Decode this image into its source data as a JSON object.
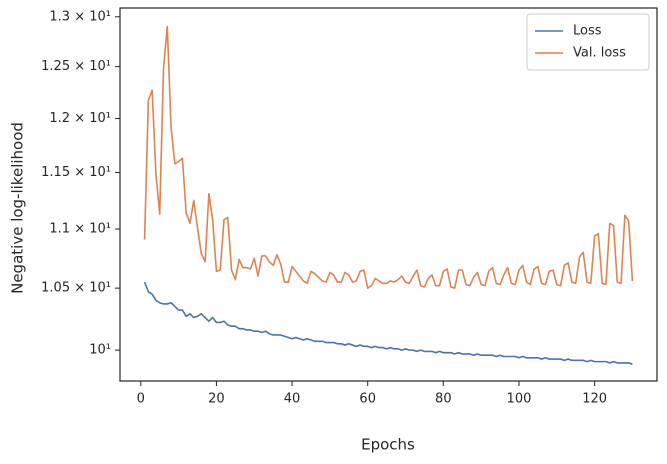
{
  "chart_data": {
    "type": "line",
    "x_label": "Epochs",
    "y_label": "Negative log-likelihood",
    "x": [
      1,
      2,
      3,
      4,
      5,
      6,
      7,
      8,
      9,
      10,
      11,
      12,
      13,
      14,
      15,
      16,
      17,
      18,
      19,
      20,
      21,
      22,
      23,
      24,
      25,
      26,
      27,
      28,
      29,
      30,
      31,
      32,
      33,
      34,
      35,
      36,
      37,
      38,
      39,
      40,
      41,
      42,
      43,
      44,
      45,
      46,
      47,
      48,
      49,
      50,
      51,
      52,
      53,
      54,
      55,
      56,
      57,
      58,
      59,
      60,
      61,
      62,
      63,
      64,
      65,
      66,
      67,
      68,
      69,
      70,
      71,
      72,
      73,
      74,
      75,
      76,
      77,
      78,
      79,
      80,
      81,
      82,
      83,
      84,
      85,
      86,
      87,
      88,
      89,
      90,
      91,
      92,
      93,
      94,
      95,
      96,
      97,
      98,
      99,
      100,
      101,
      102,
      103,
      104,
      105,
      106,
      107,
      108,
      109,
      110,
      111,
      112,
      113,
      114,
      115,
      116,
      117,
      118,
      119,
      120,
      121,
      122,
      123,
      124,
      125,
      126,
      127,
      128,
      129,
      130
    ],
    "series": [
      {
        "name": "Loss",
        "color": "#4c72b0",
        "values": [
          10.55,
          10.47,
          10.45,
          10.4,
          10.38,
          10.37,
          10.37,
          10.38,
          10.35,
          10.32,
          10.32,
          10.27,
          10.29,
          10.26,
          10.27,
          10.29,
          10.26,
          10.23,
          10.26,
          10.22,
          10.22,
          10.23,
          10.2,
          10.19,
          10.19,
          10.17,
          10.17,
          10.16,
          10.16,
          10.15,
          10.15,
          10.14,
          10.15,
          10.13,
          10.12,
          10.12,
          10.12,
          10.11,
          10.1,
          10.09,
          10.1,
          10.09,
          10.08,
          10.09,
          10.08,
          10.07,
          10.07,
          10.07,
          10.06,
          10.06,
          10.06,
          10.05,
          10.05,
          10.04,
          10.05,
          10.04,
          10.03,
          10.04,
          10.03,
          10.03,
          10.02,
          10.03,
          10.02,
          10.02,
          10.01,
          10.02,
          10.01,
          10.01,
          10.0,
          10.01,
          10.0,
          10.0,
          9.99,
          10.0,
          9.99,
          9.99,
          9.99,
          9.98,
          9.99,
          9.98,
          9.98,
          9.98,
          9.97,
          9.98,
          9.97,
          9.97,
          9.97,
          9.96,
          9.97,
          9.96,
          9.96,
          9.96,
          9.96,
          9.95,
          9.96,
          9.95,
          9.95,
          9.95,
          9.95,
          9.94,
          9.95,
          9.94,
          9.94,
          9.94,
          9.94,
          9.93,
          9.94,
          9.93,
          9.93,
          9.93,
          9.93,
          9.92,
          9.93,
          9.92,
          9.92,
          9.92,
          9.92,
          9.91,
          9.92,
          9.91,
          9.91,
          9.91,
          9.91,
          9.9,
          9.91,
          9.9,
          9.9,
          9.9,
          9.9,
          9.89
        ]
      },
      {
        "name": "Val. loss",
        "color": "#dd8452",
        "values": [
          10.91,
          12.17,
          12.27,
          11.49,
          11.13,
          12.48,
          12.9,
          11.92,
          11.58,
          11.6,
          11.63,
          11.14,
          11.05,
          11.25,
          11.01,
          10.79,
          10.72,
          11.31,
          11.08,
          10.64,
          10.65,
          11.08,
          11.1,
          10.65,
          10.57,
          10.74,
          10.67,
          10.67,
          10.66,
          10.75,
          10.6,
          10.77,
          10.77,
          10.72,
          10.69,
          10.78,
          10.7,
          10.55,
          10.55,
          10.68,
          10.64,
          10.6,
          10.56,
          10.54,
          10.64,
          10.62,
          10.59,
          10.56,
          10.55,
          10.63,
          10.61,
          10.55,
          10.55,
          10.63,
          10.61,
          10.55,
          10.56,
          10.64,
          10.65,
          10.5,
          10.52,
          10.58,
          10.56,
          10.54,
          10.54,
          10.56,
          10.55,
          10.57,
          10.6,
          10.55,
          10.54,
          10.6,
          10.65,
          10.52,
          10.51,
          10.58,
          10.61,
          10.52,
          10.52,
          10.64,
          10.66,
          10.51,
          10.5,
          10.65,
          10.65,
          10.53,
          10.52,
          10.59,
          10.63,
          10.53,
          10.52,
          10.64,
          10.67,
          10.54,
          10.53,
          10.61,
          10.67,
          10.54,
          10.53,
          10.65,
          10.69,
          10.55,
          10.53,
          10.66,
          10.68,
          10.54,
          10.53,
          10.64,
          10.65,
          10.53,
          10.52,
          10.69,
          10.71,
          10.55,
          10.54,
          10.76,
          10.8,
          10.55,
          10.54,
          10.94,
          10.96,
          10.54,
          10.53,
          11.05,
          11.03,
          10.55,
          10.54,
          11.12,
          11.07,
          10.56
        ]
      }
    ],
    "xlim": [
      -5.5,
      136.5
    ],
    "xticks": [
      0,
      20,
      40,
      60,
      80,
      100,
      120
    ],
    "ylim": [
      9.76,
      13.09
    ],
    "y_scale": "log",
    "yticks": [
      {
        "value": 10,
        "label": "10¹"
      },
      {
        "value": 10.5,
        "label": "1.05 × 10¹"
      },
      {
        "value": 11,
        "label": "1.1 × 10¹"
      },
      {
        "value": 11.5,
        "label": "1.15 × 10¹"
      },
      {
        "value": 12,
        "label": "1.2 × 10¹"
      },
      {
        "value": 12.5,
        "label": "1.25 × 10¹"
      },
      {
        "value": 13,
        "label": "1.3 × 10¹"
      }
    ],
    "grid": false,
    "legend": "upper right"
  }
}
